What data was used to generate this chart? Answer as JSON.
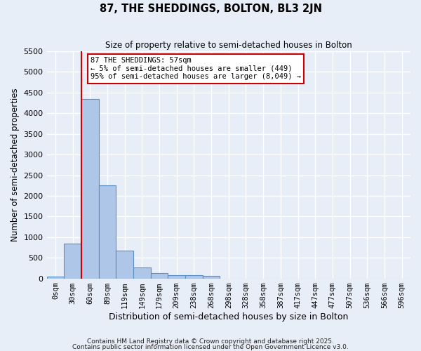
{
  "title": "87, THE SHEDDINGS, BOLTON, BL3 2JN",
  "subtitle": "Size of property relative to semi-detached houses in Bolton",
  "xlabel": "Distribution of semi-detached houses by size in Bolton",
  "ylabel": "Number of semi-detached properties",
  "bar_labels": [
    "0sqm",
    "30sqm",
    "60sqm",
    "89sqm",
    "119sqm",
    "149sqm",
    "179sqm",
    "209sqm",
    "238sqm",
    "268sqm",
    "298sqm",
    "328sqm",
    "358sqm",
    "387sqm",
    "417sqm",
    "447sqm",
    "477sqm",
    "507sqm",
    "536sqm",
    "566sqm",
    "596sqm"
  ],
  "bar_values": [
    50,
    850,
    4350,
    2250,
    680,
    260,
    130,
    80,
    70,
    60,
    0,
    0,
    0,
    0,
    0,
    0,
    0,
    0,
    0,
    0,
    0
  ],
  "bar_color": "#aec6e8",
  "bar_edge_color": "#5a8fc2",
  "background_color": "#e8eef7",
  "grid_color": "#ffffff",
  "ylim": [
    0,
    5500
  ],
  "yticks": [
    0,
    500,
    1000,
    1500,
    2000,
    2500,
    3000,
    3500,
    4000,
    4500,
    5000,
    5500
  ],
  "vline_x_bar_index": 2,
  "vline_color": "#cc0000",
  "annotation_text": "87 THE SHEDDINGS: 57sqm\n← 5% of semi-detached houses are smaller (449)\n95% of semi-detached houses are larger (8,049) →",
  "annotation_box_color": "#ffffff",
  "annotation_box_edge": "#cc0000",
  "footnote1": "Contains HM Land Registry data © Crown copyright and database right 2025.",
  "footnote2": "Contains public sector information licensed under the Open Government Licence v3.0."
}
